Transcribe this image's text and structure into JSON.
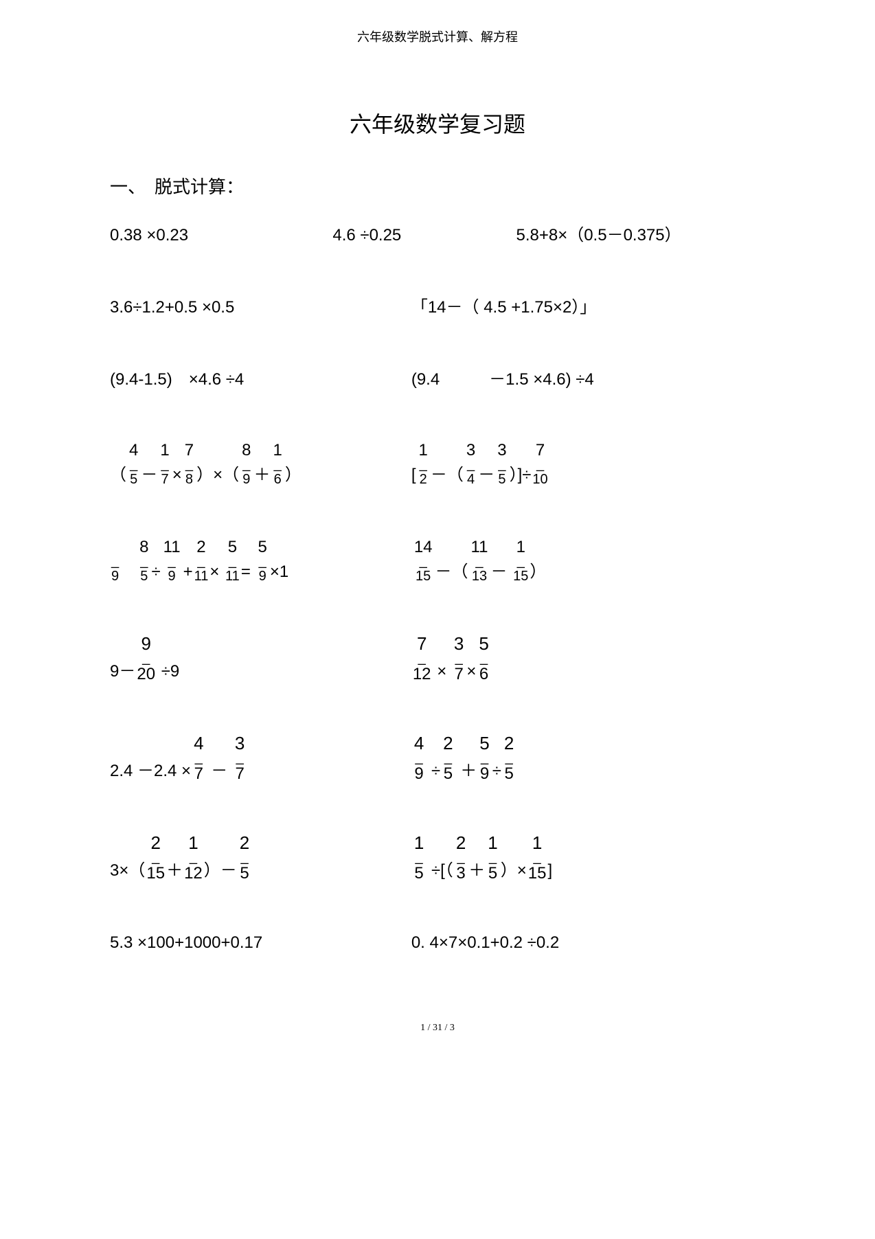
{
  "header": "六年级数学脱式计算、解方程",
  "title": "六年级数学复习题",
  "section1_label": "一、　脱式计算：",
  "footer": "1 / 31 / 3",
  "colors": {
    "background": "#ffffff",
    "text": "#000000"
  },
  "typography": {
    "body_fontsize": 24,
    "title_fontsize": 32,
    "header_fontsize": 18,
    "font_family": "SimSun"
  },
  "rows": [
    {
      "cols": 3,
      "problems": [
        {
          "tokens": [
            {
              "type": "text",
              "v": "0.38 ×0.23"
            }
          ]
        },
        {
          "tokens": [
            {
              "type": "text",
              "v": "4.6 ÷0.25"
            }
          ]
        },
        {
          "tokens": [
            {
              "type": "text",
              "v": "5.8+8×（0.5－0.375）"
            }
          ]
        }
      ]
    },
    {
      "cols": 2,
      "problems": [
        {
          "tokens": [
            {
              "type": "text",
              "v": "3.6÷1.2+0.5 ×0.5"
            }
          ]
        },
        {
          "tokens": [
            {
              "type": "text",
              "v": "「14－（ 4.5 +1.75×2）」"
            }
          ]
        }
      ]
    },
    {
      "cols": 2,
      "problems": [
        {
          "tokens": [
            {
              "type": "text",
              "v": "(9.4-1.5)　×4.6 ÷4"
            }
          ]
        },
        {
          "tokens": [
            {
              "type": "text",
              "v": "(9.4　　　－1.5 ×4.6) ÷4"
            }
          ]
        }
      ]
    },
    {
      "cols": 2,
      "problems": [
        {
          "tokens": [
            {
              "type": "text",
              "v": "（"
            },
            {
              "type": "frac",
              "n": "4",
              "d": "5"
            },
            {
              "type": "text",
              "v": "－"
            },
            {
              "type": "frac",
              "n": "1",
              "d": "7"
            },
            {
              "type": "text",
              "v": "×"
            },
            {
              "type": "frac",
              "n": "7",
              "d": "8"
            },
            {
              "type": "text",
              "v": "）×（"
            },
            {
              "type": "frac",
              "n": "8",
              "d": "9"
            },
            {
              "type": "text",
              "v": "＋"
            },
            {
              "type": "frac",
              "n": "1",
              "d": "6"
            },
            {
              "type": "text",
              "v": "）"
            }
          ]
        },
        {
          "tokens": [
            {
              "type": "text",
              "v": "["
            },
            {
              "type": "frac",
              "n": "1",
              "d": "2"
            },
            {
              "type": "text",
              "v": "－（"
            },
            {
              "type": "frac",
              "n": "3",
              "d": "4"
            },
            {
              "type": "text",
              "v": "－"
            },
            {
              "type": "frac",
              "n": "3",
              "d": "5"
            },
            {
              "type": "text",
              "v": "）]÷"
            },
            {
              "type": "frac",
              "n": "7",
              "d": "10"
            }
          ]
        }
      ]
    },
    {
      "cols": 2,
      "problems": [
        {
          "tokens": [
            {
              "type": "frac",
              "n": " ",
              "d": "9"
            },
            {
              "type": "text",
              "v": "　"
            },
            {
              "type": "frac",
              "n": "8",
              "d": "5"
            },
            {
              "type": "text",
              "v": "÷"
            },
            {
              "type": "frac",
              "n": "11",
              "d": "9"
            },
            {
              "type": "text",
              "v": "+"
            },
            {
              "type": "frac",
              "n": "2",
              "d": "11"
            },
            {
              "type": "text",
              "v": "× "
            },
            {
              "type": "frac",
              "n": "5",
              "d": "11"
            },
            {
              "type": "text",
              "v": "= "
            },
            {
              "type": "frac",
              "n": "5",
              "d": "9"
            },
            {
              "type": "text",
              "v": "×1"
            }
          ]
        },
        {
          "tokens": [
            {
              "type": "frac",
              "n": "14",
              "d": "15"
            },
            {
              "type": "text",
              "v": "－（"
            },
            {
              "type": "frac",
              "n": "11",
              "d": "13"
            },
            {
              "type": "text",
              "v": "－ "
            },
            {
              "type": "frac",
              "n": "1",
              "d": "15"
            },
            {
              "type": "text",
              "v": "）"
            }
          ]
        }
      ]
    },
    {
      "cols": 2,
      "problems": [
        {
          "tokens": [
            {
              "type": "text",
              "v": "9－"
            },
            {
              "type": "fracbig",
              "n": "9",
              "d": "20"
            },
            {
              "type": "text",
              "v": " ÷9"
            }
          ]
        },
        {
          "tokens": [
            {
              "type": "fracbig",
              "n": "7",
              "d": "12"
            },
            {
              "type": "text",
              "v": " × "
            },
            {
              "type": "fracbig",
              "n": "3",
              "d": "7"
            },
            {
              "type": "text",
              "v": "×"
            },
            {
              "type": "fracbig",
              "n": "5",
              "d": "6"
            }
          ]
        }
      ]
    },
    {
      "cols": 2,
      "problems": [
        {
          "tokens": [
            {
              "type": "text",
              "v": "2.4 －2.4 ×"
            },
            {
              "type": "fracbig",
              "n": "4",
              "d": "7"
            },
            {
              "type": "text",
              "v": " － "
            },
            {
              "type": "fracbig",
              "n": "3",
              "d": "7"
            }
          ]
        },
        {
          "tokens": [
            {
              "type": "fracbig",
              "n": "4",
              "d": "9"
            },
            {
              "type": "text",
              "v": " ÷"
            },
            {
              "type": "fracbig",
              "n": "2",
              "d": "5"
            },
            {
              "type": "text",
              "v": " ＋"
            },
            {
              "type": "fracbig",
              "n": "5",
              "d": "9"
            },
            {
              "type": "text",
              "v": "÷"
            },
            {
              "type": "fracbig",
              "n": "2",
              "d": "5"
            }
          ]
        }
      ]
    },
    {
      "cols": 2,
      "problems": [
        {
          "tokens": [
            {
              "type": "text",
              "v": "3×（"
            },
            {
              "type": "fracbig",
              "n": "2",
              "d": "15"
            },
            {
              "type": "text",
              "v": "＋"
            },
            {
              "type": "fracbig",
              "n": "1",
              "d": "12"
            },
            {
              "type": "text",
              "v": "）－"
            },
            {
              "type": "fracbig",
              "n": "2",
              "d": "5"
            }
          ]
        },
        {
          "tokens": [
            {
              "type": "fracbig",
              "n": "1",
              "d": "5"
            },
            {
              "type": "text",
              "v": " ÷[（"
            },
            {
              "type": "fracbig",
              "n": "2",
              "d": "3"
            },
            {
              "type": "text",
              "v": "＋"
            },
            {
              "type": "fracbig",
              "n": "1",
              "d": "5"
            },
            {
              "type": "text",
              "v": "）×"
            },
            {
              "type": "fracbig",
              "n": "1",
              "d": "15"
            },
            {
              "type": "text",
              "v": "]"
            }
          ]
        }
      ]
    },
    {
      "cols": 2,
      "problems": [
        {
          "tokens": [
            {
              "type": "text",
              "v": "5.3 ×100+1000+0.17"
            }
          ]
        },
        {
          "tokens": [
            {
              "type": "text",
              "v": "0. 4×7×0.1+0.2 ÷0.2"
            }
          ]
        }
      ]
    }
  ]
}
